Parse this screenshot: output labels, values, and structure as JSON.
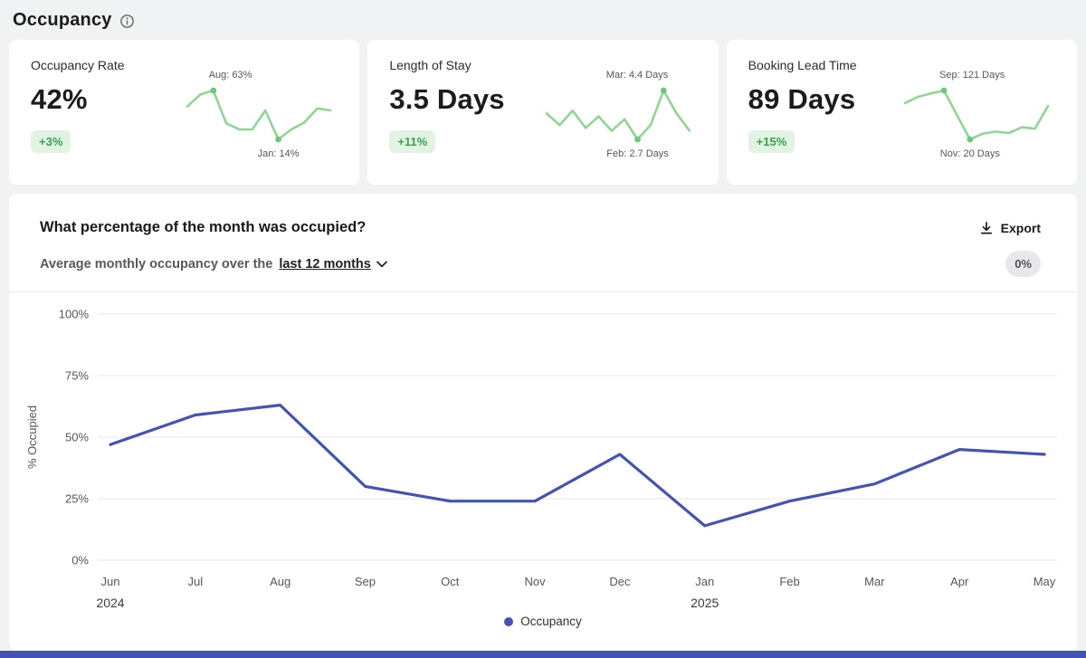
{
  "page": {
    "title": "Occupancy"
  },
  "cards": [
    {
      "label": "Occupancy Rate",
      "value": "42%",
      "delta": "+3%",
      "spark": {
        "values": [
          47,
          59,
          63,
          30,
          24,
          24,
          43,
          14,
          24,
          31,
          45,
          43
        ],
        "max_label": "Aug: 63%",
        "max_index": 2,
        "min_label": "Jan: 14%",
        "min_index": 7
      }
    },
    {
      "label": "Length of Stay",
      "value": "3.5 Days",
      "delta": "+11%",
      "spark": {
        "values": [
          3.6,
          3.2,
          3.7,
          3.1,
          3.5,
          3.0,
          3.4,
          2.7,
          3.2,
          4.4,
          3.6,
          3.0
        ],
        "max_label": "Mar: 4.4 Days",
        "max_index": 9,
        "min_label": "Feb: 2.7 Days",
        "min_index": 7
      }
    },
    {
      "label": "Booking Lead Time",
      "value": "89 Days",
      "delta": "+15%",
      "spark": {
        "values": [
          95,
          108,
          115,
          121,
          70,
          20,
          32,
          36,
          33,
          45,
          42,
          89
        ],
        "max_label": "Sep: 121 Days",
        "max_index": 3,
        "min_label": "Nov: 20 Days",
        "min_index": 5
      }
    }
  ],
  "chart_card": {
    "title": "What percentage of the month was occupied?",
    "export_label": "Export",
    "subtitle_prefix": "Average monthly occupancy over the",
    "subtitle_link": "last 12 months",
    "corner_badge": "0%"
  },
  "chart_data": {
    "type": "line",
    "x": [
      "Jun",
      "Jul",
      "Aug",
      "Sep",
      "Oct",
      "Nov",
      "Dec",
      "Jan",
      "Feb",
      "Mar",
      "Apr",
      "May"
    ],
    "year_markers": [
      {
        "index": 0,
        "label": "2024"
      },
      {
        "index": 7,
        "label": "2025"
      }
    ],
    "series": [
      {
        "name": "Occupancy",
        "values": [
          47,
          59,
          63,
          30,
          24,
          24,
          43,
          14,
          24,
          31,
          45,
          43
        ]
      }
    ],
    "title": "What percentage of the month was occupied?",
    "xlabel": "",
    "ylabel": "% Occupied",
    "yticks": [
      "0%",
      "25%",
      "50%",
      "75%",
      "100%"
    ],
    "ylim": [
      0,
      100
    ],
    "grid": true,
    "legend_position": "bottom",
    "legend": [
      {
        "label": "Occupancy",
        "color": "#4353b4"
      }
    ]
  },
  "colors": {
    "accent_line": "#4353b4",
    "spark_line": "#8fd694",
    "spark_dot": "#6cc87e",
    "delta_bg": "#e1f4e3",
    "delta_text": "#3d9e4e",
    "pill_bg": "#e8e8ea",
    "grid": "#e7e7e9"
  }
}
